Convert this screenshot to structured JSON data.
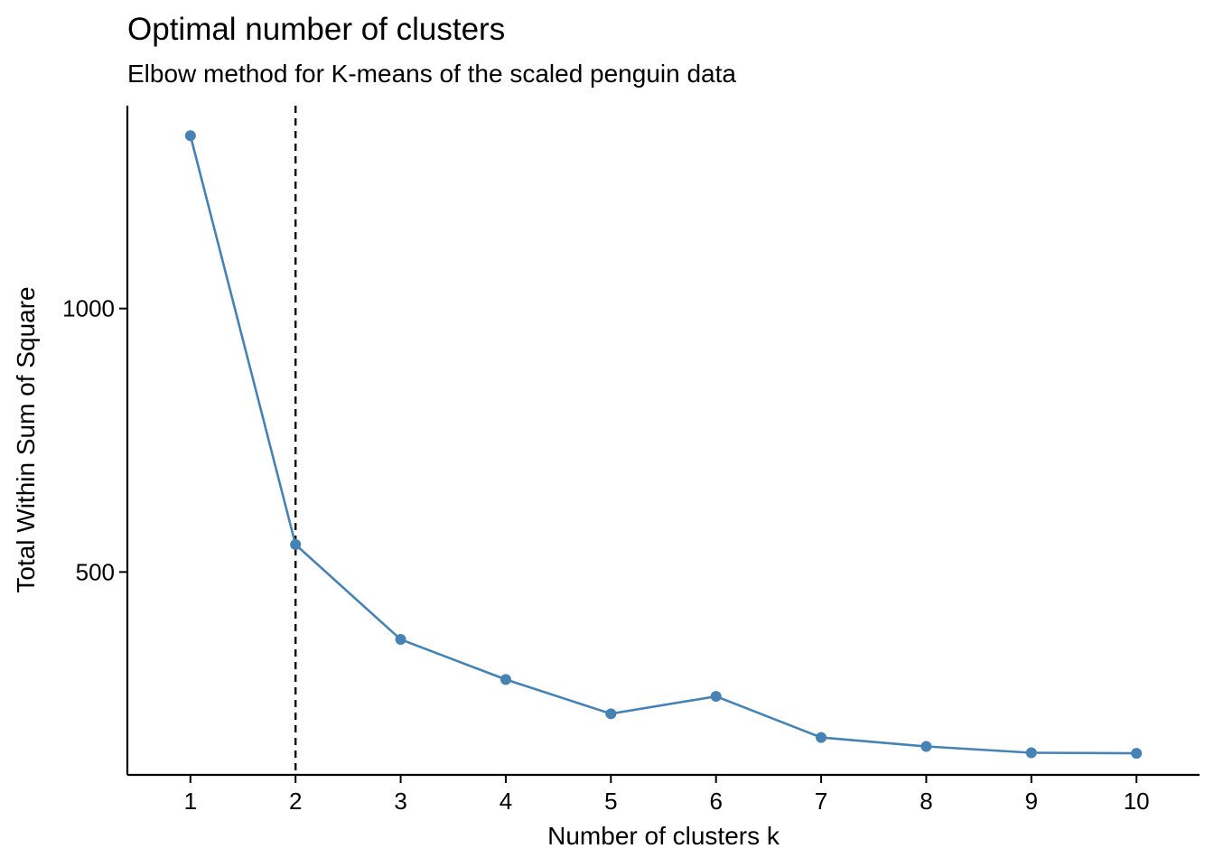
{
  "chart_data": {
    "type": "line",
    "title": "Optimal number of clusters",
    "subtitle": "Elbow method for K-means of the scaled penguin data",
    "xlabel": "Number of clusters k",
    "ylabel": "Total Within Sum of Square",
    "x": [
      1,
      2,
      3,
      4,
      5,
      6,
      7,
      8,
      9,
      10
    ],
    "series": [
      {
        "values": [
          1328,
          552,
          372,
          296,
          231,
          264,
          186,
          169,
          157,
          156
        ],
        "color": "#4682B4"
      }
    ],
    "xlim": [
      0.4,
      10.6
    ],
    "ylim": [
      115,
      1385
    ],
    "xticks": [
      "1",
      "2",
      "3",
      "4",
      "5",
      "6",
      "7",
      "8",
      "9",
      "10"
    ],
    "yticks": [
      {
        "value": 500,
        "label": "500"
      },
      {
        "value": 1000,
        "label": "1000"
      }
    ],
    "vline": {
      "x": 2,
      "style": "dashed",
      "color": "#000000"
    },
    "grid": false,
    "legend": "none"
  }
}
